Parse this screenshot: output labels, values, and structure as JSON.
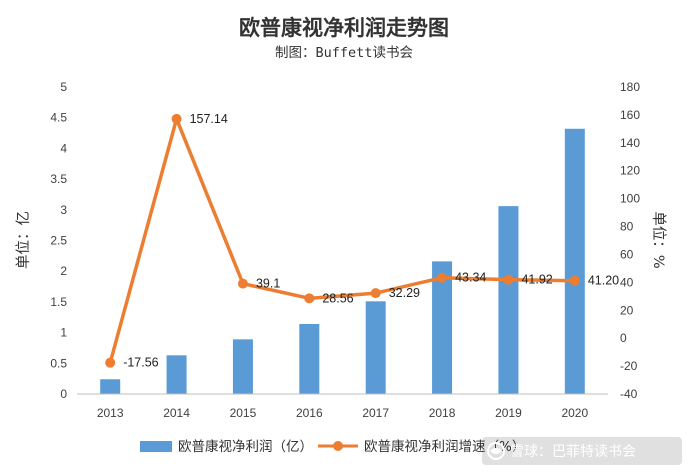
{
  "chart_data": {
    "type": "bar+line",
    "title": "欧普康视净利润走势图",
    "subtitle": "制图：Buffett读书会",
    "categories": [
      "2013",
      "2014",
      "2015",
      "2016",
      "2017",
      "2018",
      "2019",
      "2020"
    ],
    "series": [
      {
        "name": "欧普康视净利润（亿）",
        "type": "bar",
        "axis": "left",
        "color": "#5b9bd5",
        "values": [
          0.24,
          0.63,
          0.89,
          1.14,
          1.51,
          2.16,
          3.06,
          4.32
        ]
      },
      {
        "name": "欧普康视净利润增速（%）",
        "type": "line",
        "axis": "right",
        "color": "#ed7d31",
        "values": [
          -17.56,
          157.14,
          39.1,
          28.56,
          32.29,
          43.34,
          41.92,
          41.2
        ],
        "labels": [
          "-17.56",
          "157.14",
          "39.1",
          "28.56",
          "32.29",
          "43.34",
          "41.92",
          "41.20"
        ]
      }
    ],
    "y_left": {
      "label": "单位：亿",
      "range": [
        0,
        5
      ],
      "ticks": [
        "0",
        "0.5",
        "1",
        "1.5",
        "2",
        "2.5",
        "3",
        "3.5",
        "4",
        "4.5",
        "5"
      ]
    },
    "y_right": {
      "label": "单位：%",
      "range": [
        -40,
        180
      ],
      "ticks": [
        "-40",
        "-20",
        "0",
        "20",
        "40",
        "60",
        "80",
        "100",
        "120",
        "140",
        "160",
        "180"
      ]
    },
    "grid": false,
    "legend_position": "bottom"
  },
  "watermark": {
    "text": "雪球：巴菲特读书会",
    "icon": "snowball-logo-icon"
  }
}
